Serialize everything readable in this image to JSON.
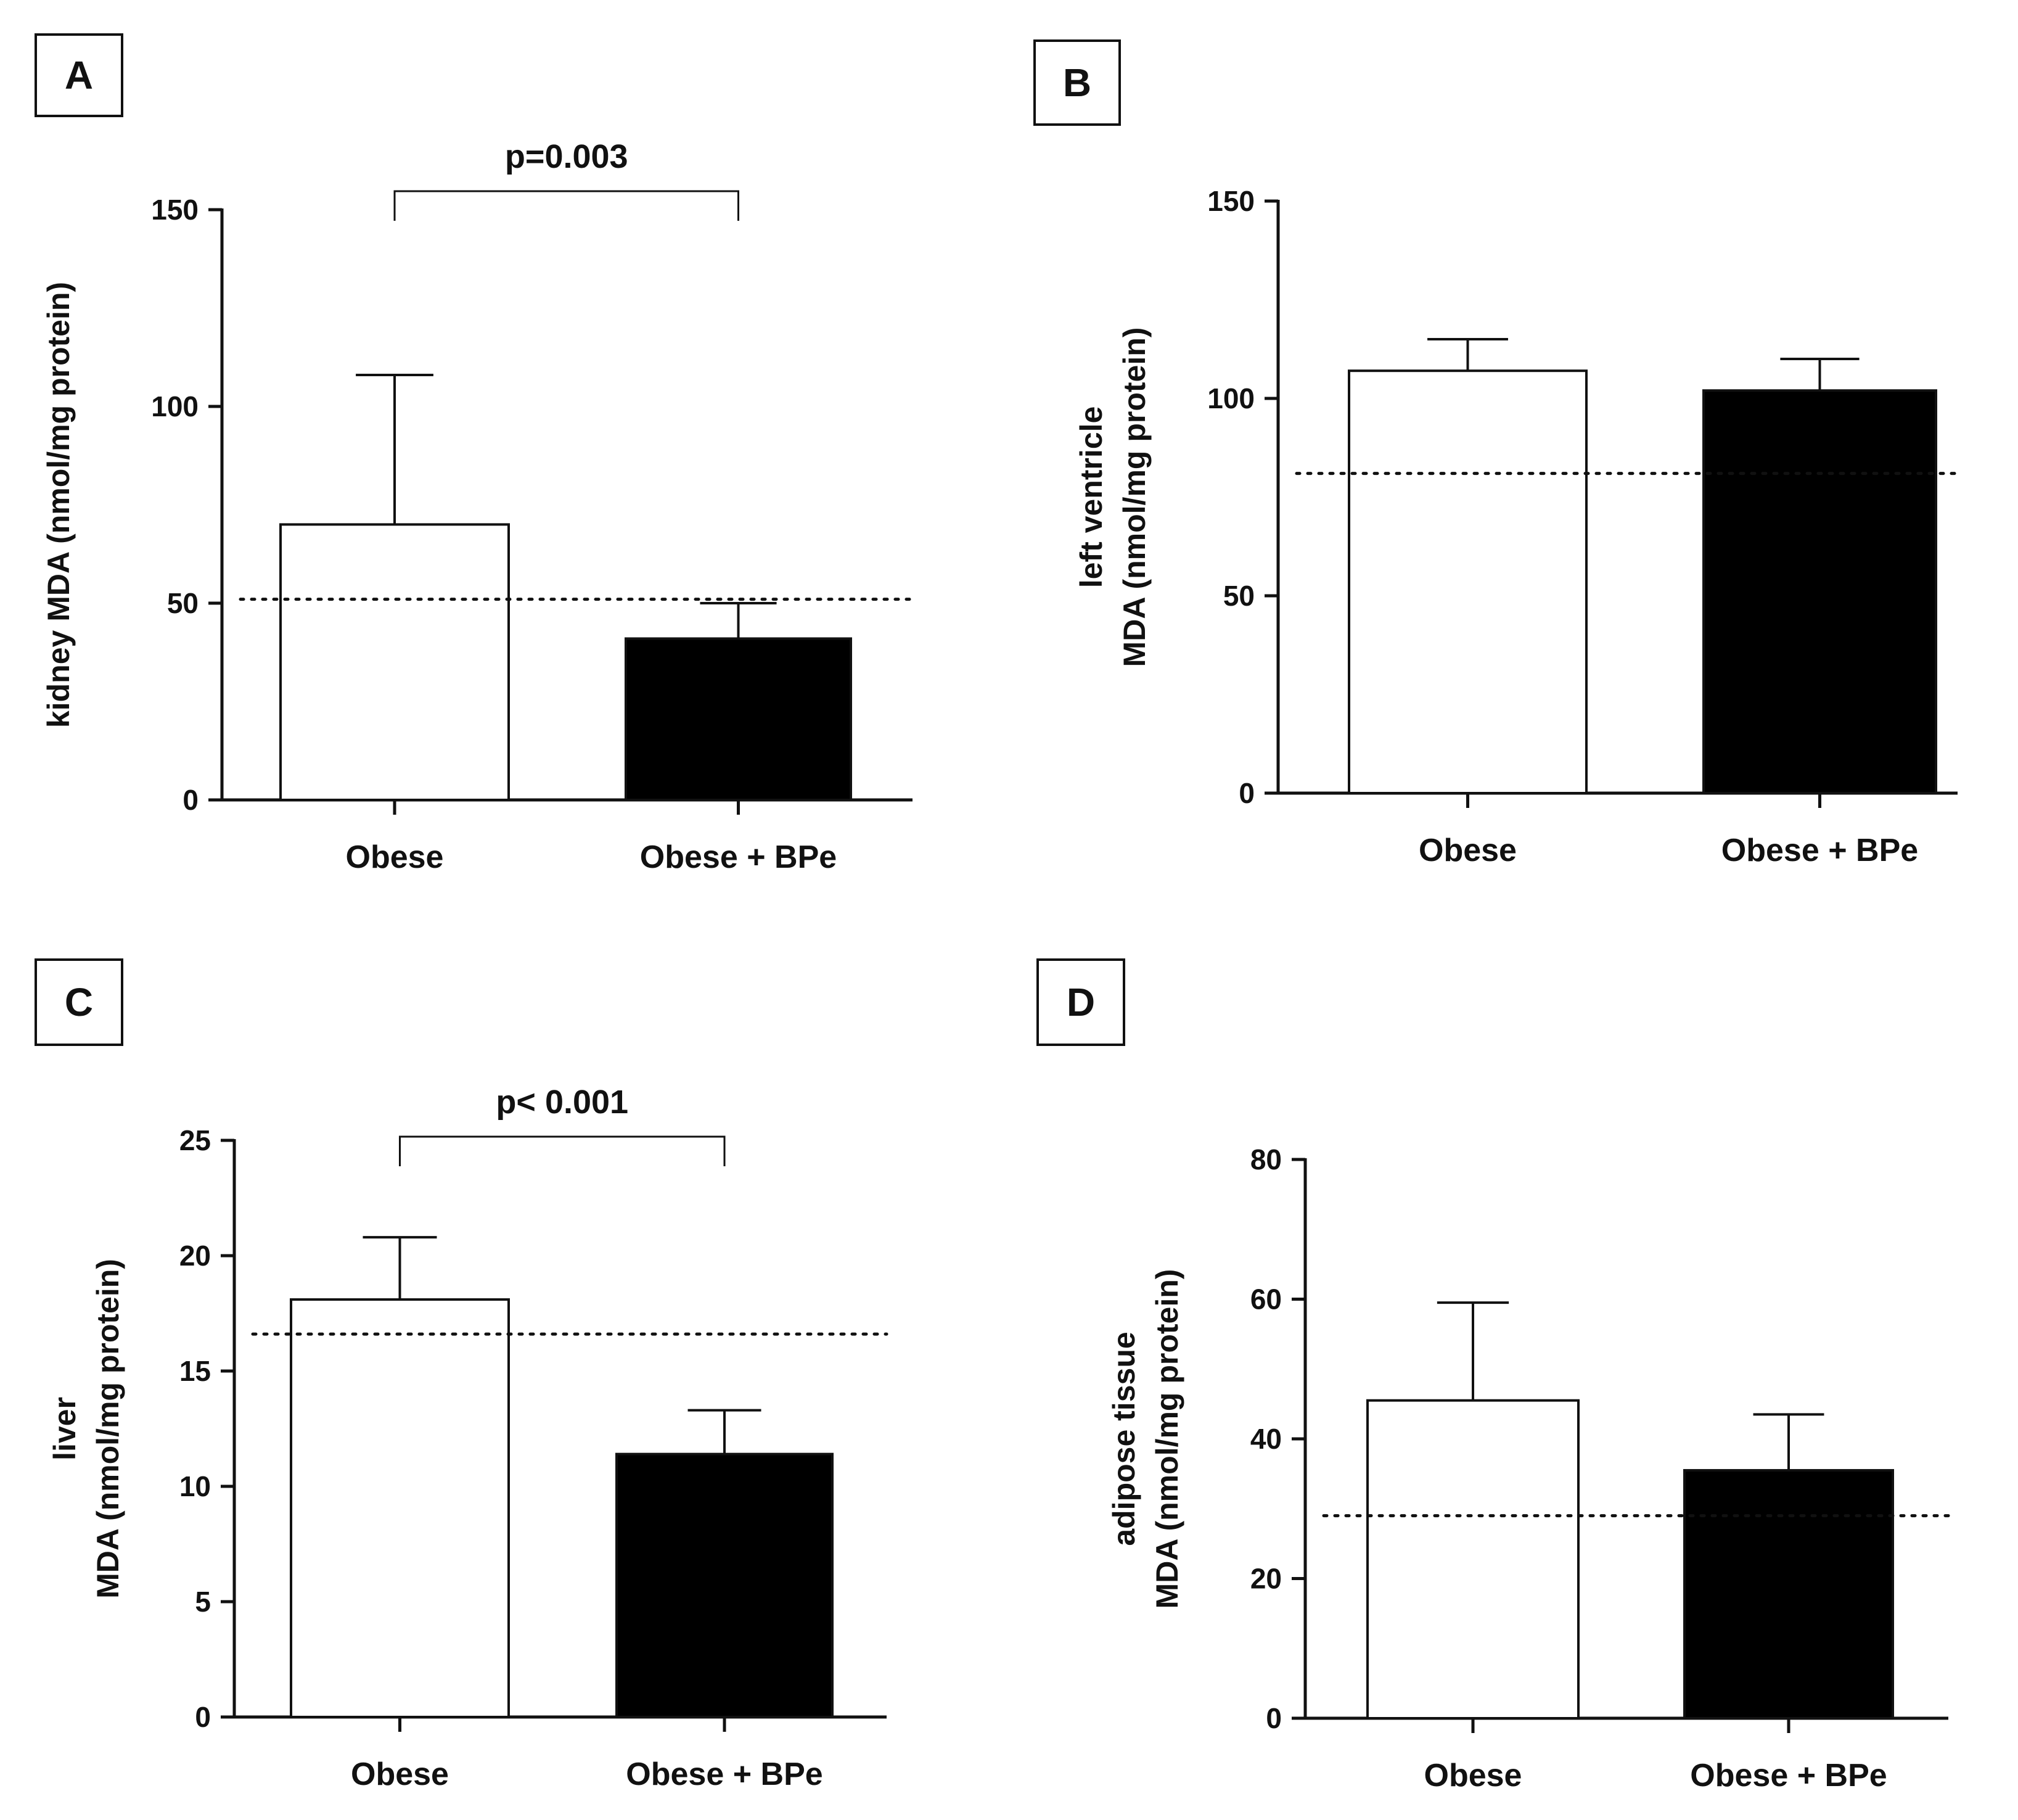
{
  "figure": {
    "background": "#ffffff",
    "ink": "#111111"
  },
  "chart_data": [
    {
      "panel": "A",
      "type": "bar",
      "categories": [
        "Obese",
        "Obese + BPe"
      ],
      "values": [
        70,
        41
      ],
      "error_upper": [
        108,
        50
      ],
      "fills": [
        "#ffffff",
        "#000000"
      ],
      "ylabel_lines": [
        "kidney MDA (nmol/mg protein)"
      ],
      "ylim": [
        0,
        150
      ],
      "yticks": [
        0,
        50,
        100,
        150
      ],
      "reference_line": 51,
      "significance": {
        "label": "p=0.003",
        "between": [
          0,
          1
        ]
      }
    },
    {
      "panel": "B",
      "type": "bar",
      "categories": [
        "Obese",
        "Obese + BPe"
      ],
      "values": [
        107,
        102
      ],
      "error_upper": [
        115,
        110
      ],
      "fills": [
        "#ffffff",
        "#000000"
      ],
      "ylabel_lines": [
        "left ventricle",
        "MDA (nmol/mg protein)"
      ],
      "ylim": [
        0,
        150
      ],
      "yticks": [
        0,
        50,
        100,
        150
      ],
      "reference_line": 81,
      "significance": null
    },
    {
      "panel": "C",
      "type": "bar",
      "categories": [
        "Obese",
        "Obese + BPe"
      ],
      "values": [
        18.1,
        11.4
      ],
      "error_upper": [
        20.8,
        13.3
      ],
      "fills": [
        "#ffffff",
        "#000000"
      ],
      "ylabel_lines": [
        "liver",
        "MDA (nmol/mg protein)"
      ],
      "ylim": [
        0,
        25
      ],
      "yticks": [
        0,
        5,
        10,
        15,
        20,
        25
      ],
      "reference_line": 16.6,
      "significance": {
        "label": "p< 0.001",
        "between": [
          0,
          1
        ]
      }
    },
    {
      "panel": "D",
      "type": "bar",
      "categories": [
        "Obese",
        "Obese + BPe"
      ],
      "values": [
        45.5,
        35.5
      ],
      "error_upper": [
        59.5,
        43.5
      ],
      "fills": [
        "#ffffff",
        "#000000"
      ],
      "ylabel_lines": [
        "adipose tissue",
        "MDA (nmol/mg protein)"
      ],
      "ylim": [
        0,
        80
      ],
      "yticks": [
        0,
        20,
        40,
        60,
        80
      ],
      "reference_line": 29,
      "significance": null
    }
  ]
}
